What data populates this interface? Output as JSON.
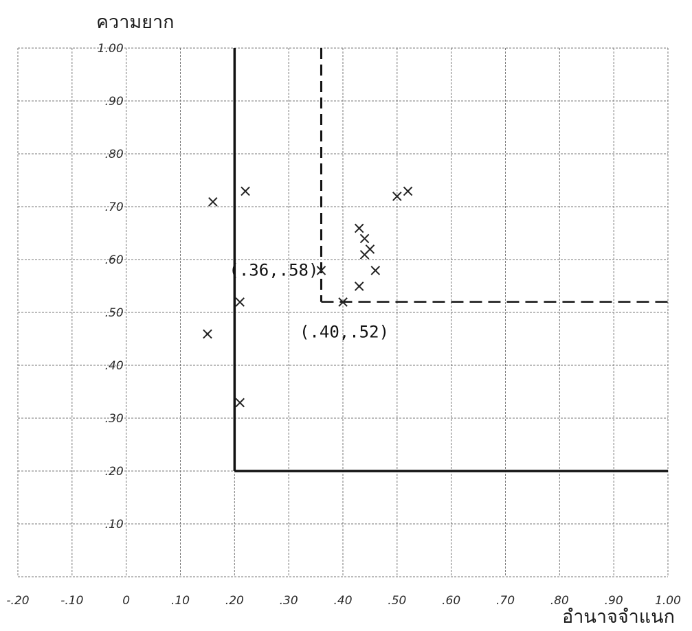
{
  "chart_data": {
    "type": "scatter",
    "ylabel": "ความยาก",
    "xlabel": "อำนาจจำแนก",
    "xlim": [
      -0.2,
      1.0
    ],
    "ylim": [
      0.0,
      1.0
    ],
    "x_ticks": [
      "-.20",
      "-.10",
      "0",
      ".10",
      ".20",
      ".30",
      ".40",
      ".50",
      ".60",
      ".70",
      ".80",
      ".90",
      "1.00"
    ],
    "y_ticks": [
      ".10",
      ".20",
      ".30",
      ".40",
      ".50",
      ".60",
      ".70",
      ".80",
      ".90",
      "1.00"
    ],
    "grid": true,
    "points": [
      {
        "x": 0.16,
        "y": 0.71
      },
      {
        "x": 0.22,
        "y": 0.73
      },
      {
        "x": 0.15,
        "y": 0.46
      },
      {
        "x": 0.21,
        "y": 0.52
      },
      {
        "x": 0.21,
        "y": 0.33
      },
      {
        "x": 0.36,
        "y": 0.58
      },
      {
        "x": 0.4,
        "y": 0.52
      },
      {
        "x": 0.43,
        "y": 0.66
      },
      {
        "x": 0.44,
        "y": 0.64
      },
      {
        "x": 0.44,
        "y": 0.61
      },
      {
        "x": 0.45,
        "y": 0.62
      },
      {
        "x": 0.46,
        "y": 0.58
      },
      {
        "x": 0.43,
        "y": 0.55
      },
      {
        "x": 0.5,
        "y": 0.72
      },
      {
        "x": 0.52,
        "y": 0.73
      }
    ],
    "solid_region": {
      "x_min": 0.2,
      "y_min": 0.2,
      "y_max": 1.0,
      "x_max": 1.0
    },
    "dashed_region": {
      "x": 0.36,
      "y": 0.52
    },
    "annotations": [
      {
        "text": "(.36,.58)",
        "x": 0.36,
        "y": 0.58
      },
      {
        "text": "(.40,.52)",
        "x": 0.4,
        "y": 0.52
      }
    ],
    "point_marker": "×",
    "colors": {
      "grid": "#777777",
      "line": "#111111",
      "ink": "#222222"
    }
  }
}
